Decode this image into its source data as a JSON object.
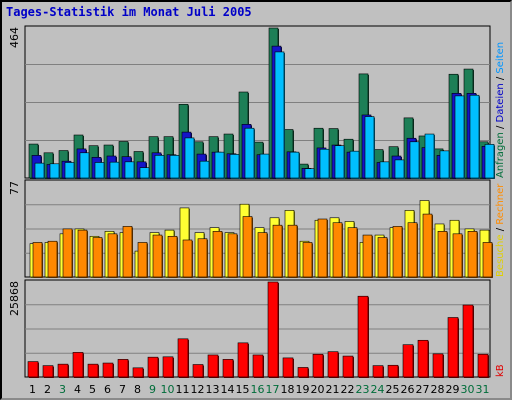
{
  "title": "Tages-Statistik im Monat Juli 2005",
  "chart_data": [
    {
      "type": "bar",
      "panel": "top",
      "ymax_label": "464",
      "ylim": [
        0,
        464
      ],
      "grid": true,
      "right_label_parts": [
        {
          "text": "Anfragen",
          "color": "#006d3a"
        },
        {
          "text": " / ",
          "color": "#000000"
        },
        {
          "text": "Dateien",
          "color": "#0000c8"
        },
        {
          "text": " / ",
          "color": "#000000"
        },
        {
          "text": "Seiten",
          "color": "#0095ff"
        }
      ],
      "categories": [
        "1",
        "2",
        "3",
        "4",
        "5",
        "6",
        "7",
        "8",
        "9",
        "10",
        "11",
        "12",
        "13",
        "14",
        "15",
        "16",
        "17",
        "18",
        "19",
        "20",
        "21",
        "22",
        "23",
        "24",
        "25",
        "26",
        "27",
        "28",
        "29",
        "30",
        "31"
      ],
      "series": [
        {
          "name": "Anfragen",
          "color": "#1d7f57",
          "values": [
            105,
            78,
            85,
            133,
            100,
            102,
            113,
            82,
            128,
            128,
            228,
            112,
            128,
            136,
            266,
            111,
            464,
            150,
            43,
            154,
            153,
            120,
            322,
            88,
            97,
            186,
            130,
            90,
            321,
            337,
            112
          ]
        },
        {
          "name": "Dateien",
          "color": "#1414c8",
          "values": [
            70,
            42,
            52,
            90,
            64,
            68,
            66,
            50,
            78,
            72,
            142,
            74,
            80,
            75,
            166,
            72,
            408,
            81,
            30,
            93,
            102,
            80,
            195,
            48,
            68,
            123,
            94,
            70,
            262,
            262,
            98
          ]
        },
        {
          "name": "Seiten",
          "color": "#00bfff",
          "values": [
            46,
            44,
            48,
            78,
            48,
            49,
            50,
            32,
            70,
            70,
            124,
            52,
            80,
            73,
            154,
            74,
            390,
            80,
            29,
            89,
            100,
            83,
            190,
            50,
            56,
            112,
            136,
            84,
            254,
            256,
            104
          ]
        }
      ]
    },
    {
      "type": "bar",
      "panel": "middle",
      "ymax_label": "77",
      "ylim": [
        0,
        77
      ],
      "grid": true,
      "right_label_parts": [
        {
          "text": "Besuche",
          "color": "#e0d000"
        },
        {
          "text": " / ",
          "color": "#000000"
        },
        {
          "text": "Rechner",
          "color": "#ff8c00"
        }
      ],
      "categories": [
        "1",
        "2",
        "3",
        "4",
        "5",
        "6",
        "7",
        "8",
        "9",
        "10",
        "11",
        "12",
        "13",
        "14",
        "15",
        "16",
        "17",
        "18",
        "19",
        "20",
        "21",
        "22",
        "23",
        "24",
        "25",
        "26",
        "27",
        "28",
        "29",
        "30",
        "31"
      ],
      "series": [
        {
          "name": "Besuche",
          "color": "#ffff33",
          "values": [
            27,
            28,
            35,
            39,
            33,
            37,
            36,
            21,
            36,
            38,
            56,
            36,
            40,
            36,
            59,
            40,
            48,
            54,
            29,
            46,
            48,
            45,
            28,
            34,
            40,
            54,
            62,
            43,
            46,
            39,
            38
          ]
        },
        {
          "name": "Rechner",
          "color": "#ff8800",
          "values": [
            28,
            29,
            39,
            38,
            32,
            35,
            41,
            28,
            34,
            33,
            30,
            31,
            37,
            35,
            49,
            36,
            42,
            42,
            28,
            47,
            44,
            40,
            34,
            32,
            41,
            44,
            51,
            37,
            35,
            37,
            28
          ]
        }
      ]
    },
    {
      "type": "bar",
      "panel": "bottom",
      "ymax_label": "25868",
      "ylim": [
        0,
        25868
      ],
      "grid": true,
      "right_label_parts": [
        {
          "text": "kB",
          "color": "#e00000"
        }
      ],
      "categories": [
        "1",
        "2",
        "3",
        "4",
        "5",
        "6",
        "7",
        "8",
        "9",
        "10",
        "11",
        "12",
        "13",
        "14",
        "15",
        "16",
        "17",
        "18",
        "19",
        "20",
        "21",
        "22",
        "23",
        "24",
        "25",
        "26",
        "27",
        "28",
        "29",
        "30",
        "31"
      ],
      "series": [
        {
          "name": "kB",
          "color": "#ff0000",
          "values": [
            4200,
            3100,
            3500,
            6700,
            3500,
            3800,
            4800,
            2500,
            5400,
            5500,
            10400,
            3400,
            6000,
            4800,
            9300,
            6000,
            25868,
            5200,
            2600,
            6200,
            6900,
            5700,
            22000,
            3100,
            3200,
            8800,
            10000,
            6300,
            16200,
            19600,
            6200
          ]
        }
      ]
    }
  ],
  "x_labels": [
    {
      "text": "1",
      "color": "#000000"
    },
    {
      "text": "2",
      "color": "#000000"
    },
    {
      "text": "3",
      "color": "#006d3a"
    },
    {
      "text": "4",
      "color": "#000000"
    },
    {
      "text": "5",
      "color": "#000000"
    },
    {
      "text": "6",
      "color": "#000000"
    },
    {
      "text": "7",
      "color": "#000000"
    },
    {
      "text": "8",
      "color": "#000000"
    },
    {
      "text": "9",
      "color": "#006d3a"
    },
    {
      "text": "10",
      "color": "#006d3a"
    },
    {
      "text": "11",
      "color": "#000000"
    },
    {
      "text": "12",
      "color": "#000000"
    },
    {
      "text": "13",
      "color": "#000000"
    },
    {
      "text": "14",
      "color": "#000000"
    },
    {
      "text": "15",
      "color": "#000000"
    },
    {
      "text": "16",
      "color": "#006d3a"
    },
    {
      "text": "17",
      "color": "#006d3a"
    },
    {
      "text": "18",
      "color": "#000000"
    },
    {
      "text": "19",
      "color": "#000000"
    },
    {
      "text": "20",
      "color": "#000000"
    },
    {
      "text": "21",
      "color": "#000000"
    },
    {
      "text": "22",
      "color": "#000000"
    },
    {
      "text": "23",
      "color": "#006d3a"
    },
    {
      "text": "24",
      "color": "#006d3a"
    },
    {
      "text": "25",
      "color": "#000000"
    },
    {
      "text": "26",
      "color": "#000000"
    },
    {
      "text": "27",
      "color": "#000000"
    },
    {
      "text": "28",
      "color": "#000000"
    },
    {
      "text": "29",
      "color": "#000000"
    },
    {
      "text": "30",
      "color": "#006d3a"
    },
    {
      "text": "31",
      "color": "#006d3a"
    }
  ]
}
